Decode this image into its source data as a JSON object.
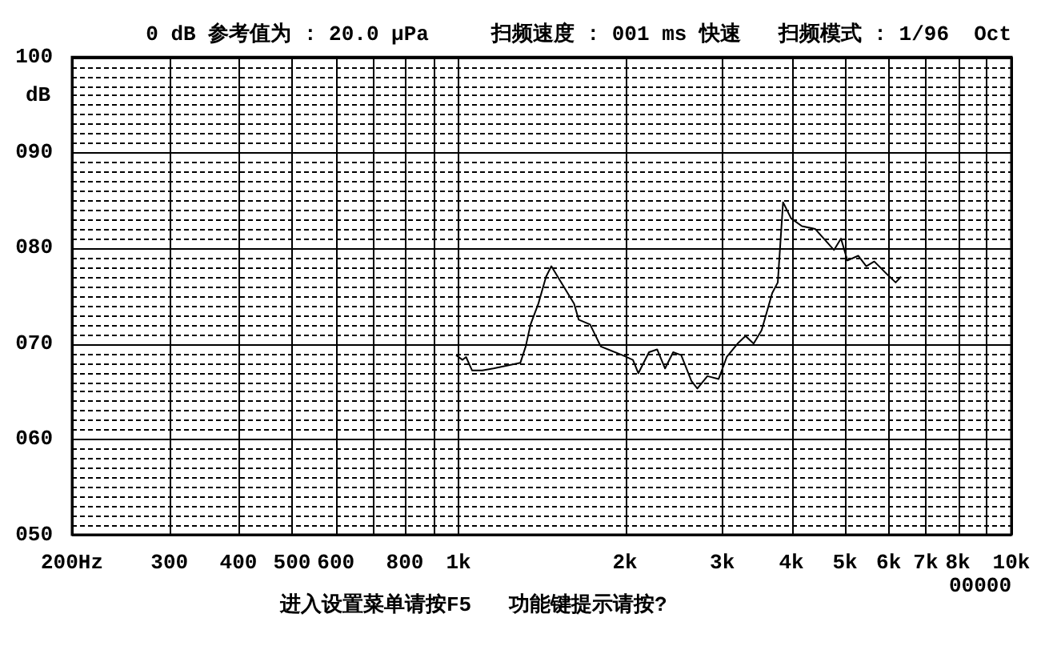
{
  "chart_data": {
    "type": "line",
    "title": "0 dB 参考值为 : 20.0 μPa     扫频速度 : 001 ms 快速   扫频模式 : 1/96  Oct",
    "ylabel": "dB",
    "annotations": [
      "进入设置菜单请按F5   功能键提示请按?",
      "00000"
    ],
    "log": "x",
    "grid": true,
    "legend": false,
    "marker": "none",
    "line_style": "solid",
    "xlim": [
      200,
      10000
    ],
    "ylim": [
      50,
      100
    ],
    "xticks": [
      {
        "value": 200,
        "label": "200Hz"
      },
      300,
      400,
      500,
      600,
      {
        "value": 700,
        "label": null
      },
      800,
      {
        "value": 900,
        "label": null
      },
      {
        "value": 1000,
        "label": "1k"
      },
      {
        "value": 2000,
        "label": "2k"
      },
      {
        "value": 3000,
        "label": "3k"
      },
      {
        "value": 4000,
        "label": "4k"
      },
      {
        "value": 5000,
        "label": "5k"
      },
      {
        "value": 6000,
        "label": "6k"
      },
      {
        "value": 7000,
        "label": "7k"
      },
      {
        "value": 8000,
        "label": "8k"
      },
      {
        "value": 9000,
        "label": null
      },
      {
        "value": 10000,
        "label": "10k"
      }
    ],
    "yticks": [
      {
        "value": 50,
        "label": "050"
      },
      {
        "value": 51,
        "label": null
      },
      {
        "value": 52,
        "label": null
      },
      {
        "value": 53,
        "label": null
      },
      {
        "value": 54,
        "label": null
      },
      {
        "value": 55,
        "label": null
      },
      {
        "value": 56,
        "label": null
      },
      {
        "value": 57,
        "label": null
      },
      {
        "value": 58,
        "label": null
      },
      {
        "value": 59,
        "label": null
      },
      {
        "value": 60,
        "label": "060"
      },
      {
        "value": 61,
        "label": null
      },
      {
        "value": 62,
        "label": null
      },
      {
        "value": 63,
        "label": null
      },
      {
        "value": 64,
        "label": null
      },
      {
        "value": 65,
        "label": null
      },
      {
        "value": 66,
        "label": null
      },
      {
        "value": 67,
        "label": null
      },
      {
        "value": 68,
        "label": null
      },
      {
        "value": 69,
        "label": null
      },
      {
        "value": 70,
        "label": "070"
      },
      {
        "value": 71,
        "label": null
      },
      {
        "value": 72,
        "label": null
      },
      {
        "value": 73,
        "label": null
      },
      {
        "value": 74,
        "label": null
      },
      {
        "value": 75,
        "label": null
      },
      {
        "value": 76,
        "label": null
      },
      {
        "value": 77,
        "label": null
      },
      {
        "value": 78,
        "label": null
      },
      {
        "value": 79,
        "label": null
      },
      {
        "value": 80,
        "label": "080"
      },
      {
        "value": 81,
        "label": null
      },
      {
        "value": 82,
        "label": null
      },
      {
        "value": 83,
        "label": null
      },
      {
        "value": 84,
        "label": null
      },
      {
        "value": 85,
        "label": null
      },
      {
        "value": 86,
        "label": null
      },
      {
        "value": 87,
        "label": null
      },
      {
        "value": 88,
        "label": null
      },
      {
        "value": 89,
        "label": null
      },
      {
        "value": 90,
        "label": "090"
      },
      {
        "value": 91,
        "label": null
      },
      {
        "value": 92,
        "label": null
      },
      {
        "value": 93,
        "label": null
      },
      {
        "value": 94,
        "label": null
      },
      {
        "value": 95,
        "label": null
      },
      {
        "value": 96,
        "label": null
      },
      {
        "value": 97,
        "label": null
      },
      {
        "value": 98,
        "label": null
      },
      {
        "value": 99,
        "label": null
      },
      100
    ],
    "series": [
      {
        "color": "#000000",
        "x": [
          990,
          1017,
          1032,
          1058,
          1104,
          1157,
          1294,
          1323,
          1350,
          1395,
          1440,
          1472,
          1512,
          1564,
          1618,
          1650,
          1730,
          1809,
          1978,
          2068,
          2115,
          2211,
          2287,
          2364,
          2445,
          2528,
          2638,
          2704,
          2820,
          2955,
          3056,
          3197,
          3305,
          3418,
          3534,
          3694,
          3780,
          3864,
          3996,
          4180,
          4418,
          4778,
          4918,
          5052,
          5284,
          5464,
          5649,
          5972,
          6176,
          6314
        ],
        "values": [
          68.8,
          68.3,
          68.6,
          67.2,
          67.2,
          67.4,
          68.0,
          69.7,
          72.0,
          74.2,
          77.0,
          78.1,
          77.0,
          75.6,
          74.2,
          72.5,
          72.0,
          69.7,
          68.8,
          68.3,
          66.9,
          69.1,
          69.4,
          67.4,
          69.1,
          68.8,
          66.1,
          65.3,
          66.6,
          66.3,
          68.6,
          70.0,
          70.8,
          70.0,
          71.4,
          75.3,
          76.4,
          84.8,
          83.1,
          82.3,
          82.0,
          79.8,
          81.0,
          78.7,
          79.2,
          78.1,
          78.6,
          77.2,
          76.4,
          77.0
        ]
      }
    ]
  }
}
